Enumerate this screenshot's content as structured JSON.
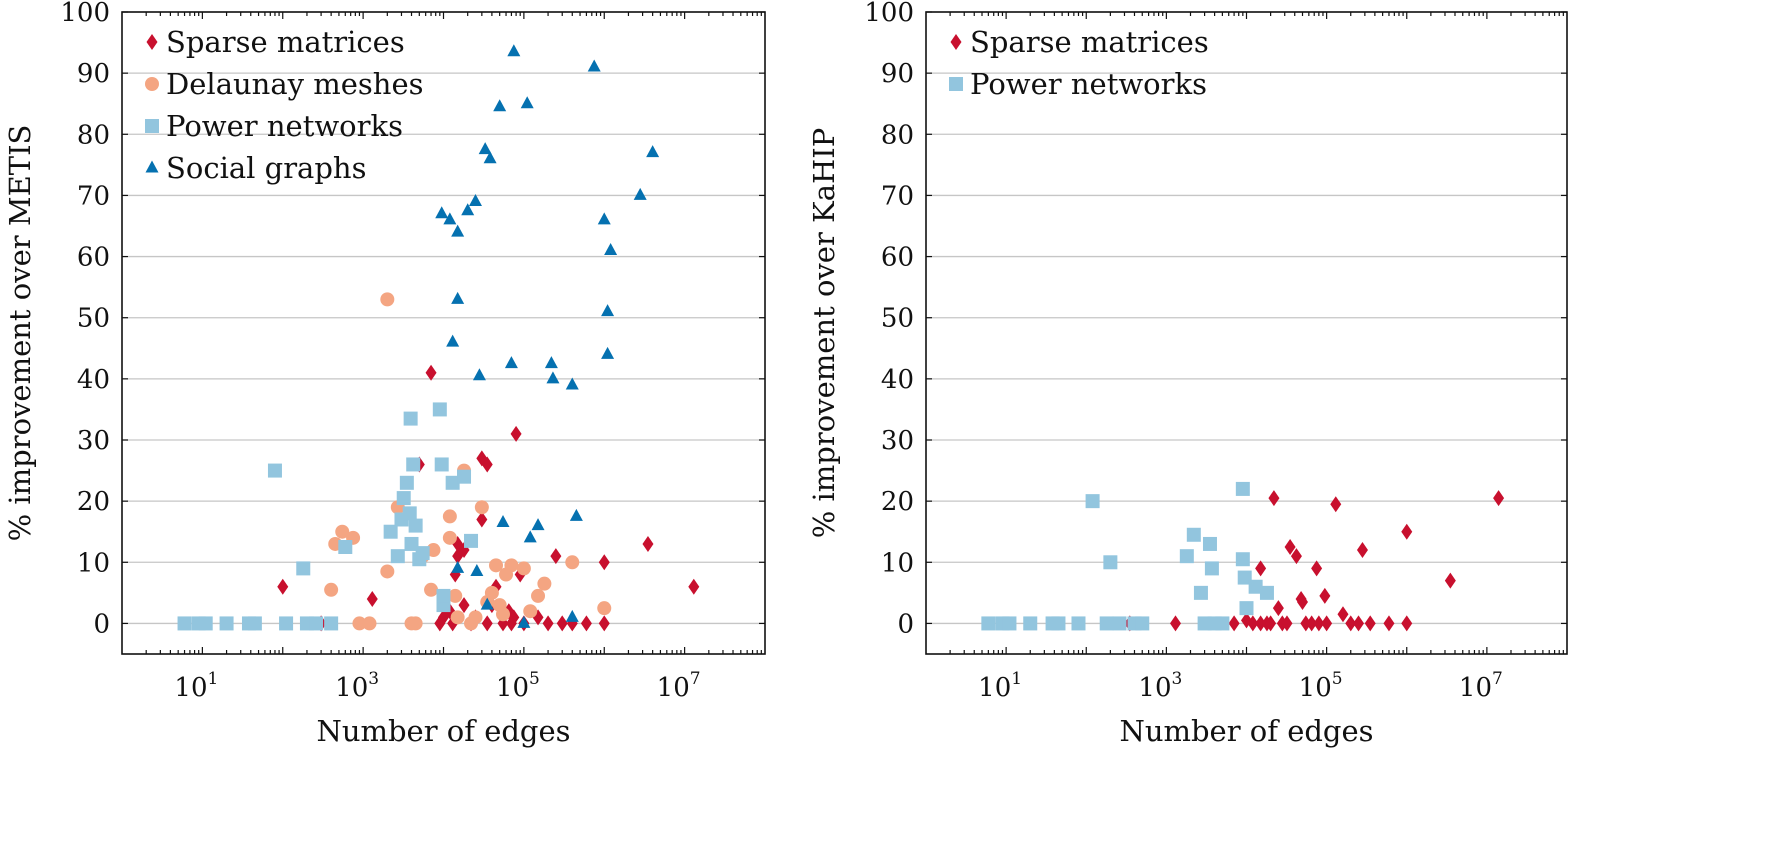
{
  "colors": {
    "Sparse matrices": "#c8102e",
    "Delaunay meshes": "#f4a582",
    "Power networks": "#92c5de",
    "Social graphs": "#0571b0"
  },
  "markers": {
    "Sparse matrices": "diamond",
    "Delaunay meshes": "circle",
    "Power networks": "square",
    "Social graphs": "triangle"
  },
  "chart_data": [
    {
      "type": "scatter",
      "xlabel": "Number of edges",
      "ylabel": "% improvement over METIS",
      "xscale": "log",
      "xlim": [
        1,
        100000000
      ],
      "ylim": [
        -5,
        100
      ],
      "xticks": [
        10,
        1000,
        100000,
        10000000
      ],
      "xtick_labels": [
        {
          "base": "10",
          "exp": "1"
        },
        {
          "base": "10",
          "exp": "3"
        },
        {
          "base": "10",
          "exp": "5"
        },
        {
          "base": "10",
          "exp": "7"
        }
      ],
      "yticks": [
        0,
        10,
        20,
        30,
        40,
        50,
        60,
        70,
        80,
        90,
        100
      ],
      "grid": "horizontal",
      "legend_position": "top-left",
      "legend": [
        "Sparse matrices",
        "Delaunay meshes",
        "Power networks",
        "Social graphs"
      ],
      "series": [
        {
          "name": "Sparse matrices",
          "points": [
            [
              100,
              6
            ],
            [
              300,
              0
            ],
            [
              1300,
              4
            ],
            [
              5000,
              26
            ],
            [
              7000,
              41
            ],
            [
              9000,
              0
            ],
            [
              10000,
              1
            ],
            [
              12000,
              2
            ],
            [
              13000,
              0
            ],
            [
              14000,
              8
            ],
            [
              15000,
              11
            ],
            [
              15000,
              13
            ],
            [
              18000,
              12
            ],
            [
              18000,
              3
            ],
            [
              22000,
              0
            ],
            [
              25000,
              1
            ],
            [
              30000,
              17
            ],
            [
              30000,
              27
            ],
            [
              35000,
              0
            ],
            [
              35000,
              26
            ],
            [
              40000,
              3
            ],
            [
              45000,
              6
            ],
            [
              55000,
              0
            ],
            [
              65000,
              2
            ],
            [
              70000,
              0
            ],
            [
              75000,
              1
            ],
            [
              80000,
              31
            ],
            [
              90000,
              8
            ],
            [
              100000,
              0
            ],
            [
              150000,
              1
            ],
            [
              200000,
              0
            ],
            [
              250000,
              11
            ],
            [
              300000,
              0
            ],
            [
              400000,
              0
            ],
            [
              600000,
              0
            ],
            [
              1000000,
              10
            ],
            [
              1000000,
              0
            ],
            [
              3500000,
              13
            ],
            [
              13000000,
              6
            ]
          ]
        },
        {
          "name": "Delaunay meshes",
          "points": [
            [
              400,
              5.5
            ],
            [
              450,
              13
            ],
            [
              550,
              15
            ],
            [
              750,
              14
            ],
            [
              900,
              0
            ],
            [
              1200,
              0
            ],
            [
              2000,
              53
            ],
            [
              2000,
              8.5
            ],
            [
              2700,
              19
            ],
            [
              4000,
              0
            ],
            [
              4500,
              0
            ],
            [
              5500,
              11
            ],
            [
              7000,
              5.5
            ],
            [
              7500,
              12
            ],
            [
              12000,
              14
            ],
            [
              12000,
              17.5
            ],
            [
              14000,
              4.5
            ],
            [
              15000,
              1
            ],
            [
              18000,
              25
            ],
            [
              22000,
              0
            ],
            [
              25000,
              1
            ],
            [
              30000,
              19
            ],
            [
              35000,
              3.5
            ],
            [
              40000,
              5
            ],
            [
              45000,
              9.5
            ],
            [
              50000,
              3
            ],
            [
              55000,
              1.5
            ],
            [
              60000,
              8
            ],
            [
              70000,
              9.5
            ],
            [
              100000,
              9
            ],
            [
              120000,
              2
            ],
            [
              150000,
              4.5
            ],
            [
              180000,
              6.5
            ],
            [
              400000,
              10
            ],
            [
              1000000,
              2.5
            ]
          ]
        },
        {
          "name": "Power networks",
          "points": [
            [
              6,
              0
            ],
            [
              9,
              0
            ],
            [
              11,
              0
            ],
            [
              20,
              0
            ],
            [
              38,
              0
            ],
            [
              45,
              0
            ],
            [
              80,
              25
            ],
            [
              110,
              0
            ],
            [
              180,
              9
            ],
            [
              200,
              0
            ],
            [
              260,
              0
            ],
            [
              400,
              0
            ],
            [
              600,
              12.5
            ],
            [
              2200,
              15
            ],
            [
              2700,
              11
            ],
            [
              3000,
              17
            ],
            [
              3200,
              20.5
            ],
            [
              3500,
              23
            ],
            [
              3800,
              18
            ],
            [
              3900,
              33.5
            ],
            [
              4000,
              13
            ],
            [
              4200,
              26
            ],
            [
              4500,
              16
            ],
            [
              5000,
              10.5
            ],
            [
              5500,
              11.5
            ],
            [
              9000,
              35
            ],
            [
              9500,
              26
            ],
            [
              10000,
              3
            ],
            [
              10000,
              4.5
            ],
            [
              13000,
              23
            ],
            [
              18000,
              24
            ],
            [
              22000,
              13.5
            ]
          ]
        },
        {
          "name": "Social graphs",
          "points": [
            [
              9500,
              67
            ],
            [
              12000,
              66
            ],
            [
              13000,
              46
            ],
            [
              15000,
              64
            ],
            [
              15000,
              53
            ],
            [
              15000,
              9
            ],
            [
              20000,
              67.5
            ],
            [
              25000,
              69
            ],
            [
              26000,
              8.5
            ],
            [
              28000,
              40.5
            ],
            [
              33000,
              77.5
            ],
            [
              35000,
              3
            ],
            [
              38000,
              76
            ],
            [
              50000,
              84.5
            ],
            [
              55000,
              16.5
            ],
            [
              70000,
              42.5
            ],
            [
              75000,
              93.5
            ],
            [
              100000,
              0
            ],
            [
              110000,
              85
            ],
            [
              120000,
              14
            ],
            [
              150000,
              16
            ],
            [
              220000,
              42.5
            ],
            [
              230000,
              40
            ],
            [
              400000,
              39
            ],
            [
              450000,
              17.5
            ],
            [
              750000,
              91
            ],
            [
              1000000,
              66
            ],
            [
              1100000,
              44
            ],
            [
              1100000,
              51
            ],
            [
              1200000,
              61
            ],
            [
              2800000,
              70
            ],
            [
              4000000,
              77
            ],
            [
              400000,
              1
            ]
          ]
        }
      ]
    },
    {
      "type": "scatter",
      "xlabel": "Number of edges",
      "ylabel": "% improvement over KaHIP",
      "xscale": "log",
      "xlim": [
        1,
        100000000
      ],
      "ylim": [
        -5,
        100
      ],
      "xticks": [
        10,
        1000,
        100000,
        10000000
      ],
      "xtick_labels": [
        {
          "base": "10",
          "exp": "1"
        },
        {
          "base": "10",
          "exp": "3"
        },
        {
          "base": "10",
          "exp": "5"
        },
        {
          "base": "10",
          "exp": "7"
        }
      ],
      "yticks": [
        0,
        10,
        20,
        30,
        40,
        50,
        60,
        70,
        80,
        90,
        100
      ],
      "grid": "horizontal",
      "legend_position": "top-left",
      "legend": [
        "Sparse matrices",
        "Power networks"
      ],
      "series": [
        {
          "name": "Sparse matrices",
          "points": [
            [
              350,
              0
            ],
            [
              1300,
              0
            ],
            [
              7000,
              0
            ],
            [
              10000,
              0.5
            ],
            [
              12000,
              0
            ],
            [
              15000,
              9
            ],
            [
              15000,
              0
            ],
            [
              18000,
              0
            ],
            [
              20000,
              0
            ],
            [
              22000,
              20.5
            ],
            [
              25000,
              2.5
            ],
            [
              28000,
              0
            ],
            [
              32000,
              0
            ],
            [
              35000,
              12.5
            ],
            [
              42000,
              11
            ],
            [
              48000,
              4
            ],
            [
              50000,
              3.5
            ],
            [
              55000,
              0
            ],
            [
              65000,
              0
            ],
            [
              75000,
              9
            ],
            [
              80000,
              0
            ],
            [
              95000,
              4.5
            ],
            [
              100000,
              0
            ],
            [
              130000,
              19.5
            ],
            [
              160000,
              1.5
            ],
            [
              200000,
              0
            ],
            [
              250000,
              0
            ],
            [
              280000,
              12
            ],
            [
              350000,
              0
            ],
            [
              600000,
              0
            ],
            [
              1000000,
              15
            ],
            [
              1000000,
              0
            ],
            [
              3500000,
              7
            ],
            [
              14000000,
              20.5
            ]
          ]
        },
        {
          "name": "Power networks",
          "points": [
            [
              6,
              0
            ],
            [
              9,
              0
            ],
            [
              11,
              0
            ],
            [
              20,
              0
            ],
            [
              38,
              0
            ],
            [
              45,
              0
            ],
            [
              80,
              0
            ],
            [
              120,
              20
            ],
            [
              180,
              0
            ],
            [
              200,
              10
            ],
            [
              260,
              0
            ],
            [
              400,
              0
            ],
            [
              500,
              0
            ],
            [
              1800,
              11
            ],
            [
              2200,
              14.5
            ],
            [
              2700,
              5
            ],
            [
              3000,
              0
            ],
            [
              3500,
              13
            ],
            [
              3700,
              9
            ],
            [
              4000,
              0
            ],
            [
              5000,
              0
            ],
            [
              9000,
              22
            ],
            [
              9000,
              10.5
            ],
            [
              9500,
              7.5
            ],
            [
              10000,
              2.5
            ],
            [
              13000,
              6
            ],
            [
              18000,
              5
            ]
          ]
        }
      ]
    }
  ]
}
